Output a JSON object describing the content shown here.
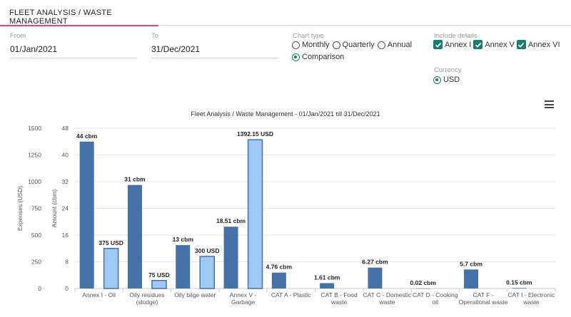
{
  "header": {
    "title": "FLEET ANALYSIS / WASTE MANAGEMENT"
  },
  "filters": {
    "from_label": "From",
    "from_value": "01/Jan/2021",
    "to_label": "To",
    "to_value": "31/Dec/2021",
    "chart_type_label": "Chart type",
    "chart_types": [
      {
        "label": "Monthly",
        "selected": false
      },
      {
        "label": "Quarterly",
        "selected": false
      },
      {
        "label": "Annual",
        "selected": false
      },
      {
        "label": "Comparison",
        "selected": true
      }
    ],
    "include_details_label": "Include details",
    "details": [
      {
        "label": "Annex I",
        "checked": true
      },
      {
        "label": "Annex V",
        "checked": true
      },
      {
        "label": "Annex VI",
        "checked": true
      }
    ],
    "currency_label": "Currency",
    "currency": {
      "label": "USD",
      "selected": true
    }
  },
  "icons": {
    "menu": "hamburger-menu-icon"
  },
  "colors": {
    "accent": "#e8407a",
    "check": "#16806f",
    "cbm_bar": "#4472a8",
    "usd_bar": "#9ec8f5"
  },
  "chart_data": {
    "type": "bar",
    "title": "Fleet Analysis / Waste Management - 01/Jan/2021 till 31/Dec/2021",
    "categories": [
      [
        "Annex I - Oil"
      ],
      [
        "Oily residues",
        "(sludge)"
      ],
      [
        "Oily bilge water"
      ],
      [
        "Annex V -",
        "Garbage"
      ],
      [
        "CAT A - Plastic"
      ],
      [
        "CAT B - Food",
        "waste"
      ],
      [
        "CAT C - Domestic",
        "waste"
      ],
      [
        "CAT D - Cooking",
        "oil"
      ],
      [
        "CAT F -",
        "Operational waste"
      ],
      [
        "CAT I - Electronic",
        "waste"
      ]
    ],
    "series": [
      {
        "axis": "amount",
        "values": [
          44,
          31,
          13,
          18.51,
          4.76,
          1.61,
          6.27,
          0.02,
          5.7,
          0.15
        ],
        "labels": [
          "44 cbm",
          "31 cbm",
          "13 cbm",
          "18.51 cbm",
          "4.76 cbm",
          "1.61 cbm",
          "6.27 cbm",
          "0.02 cbm",
          "5.7 cbm",
          "0.15 cbm"
        ]
      },
      {
        "axis": "expenses",
        "values": [
          375,
          75,
          300,
          1392.15,
          null,
          null,
          null,
          null,
          null,
          null
        ],
        "labels": [
          "375 USD",
          "75 USD",
          "300 USD",
          "1392.15 USD",
          "",
          "",
          "",
          "",
          "",
          ""
        ]
      }
    ],
    "y_left": {
      "label": "Expenses (USD)",
      "ticks": [
        0,
        250,
        500,
        750,
        1000,
        1250,
        1500
      ],
      "range": [
        0,
        1500
      ]
    },
    "y_right": {
      "label": "Amount (cbm)",
      "ticks": [
        0,
        8,
        16,
        24,
        32,
        40,
        48
      ],
      "range": [
        0,
        48
      ]
    },
    "grid": true
  }
}
